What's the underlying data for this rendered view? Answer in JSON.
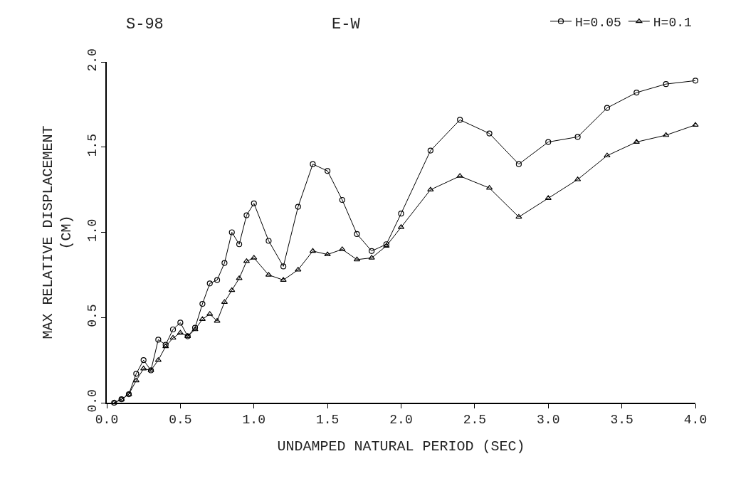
{
  "chart_data": {
    "type": "line",
    "title": "S-98",
    "subtitle": "E-W",
    "xlabel": "UNDAMPED NATURAL PERIOD (SEC)",
    "ylabel": "MAX RELATIVE DISPLACEMENT\n(CM)",
    "x": [
      0.05,
      0.1,
      0.15,
      0.2,
      0.25,
      0.3,
      0.35,
      0.4,
      0.45,
      0.5,
      0.55,
      0.6,
      0.65,
      0.7,
      0.75,
      0.8,
      0.85,
      0.9,
      0.95,
      1.0,
      1.1,
      1.2,
      1.3,
      1.4,
      1.5,
      1.6,
      1.7,
      1.8,
      1.9,
      2.0,
      2.2,
      2.4,
      2.6,
      2.8,
      3.0,
      3.2,
      3.4,
      3.6,
      3.8,
      4.0
    ],
    "series": [
      {
        "name": "H=0.05",
        "color": "#000000",
        "marker": "circle",
        "values": [
          0.0,
          0.02,
          0.05,
          0.17,
          0.25,
          0.19,
          0.37,
          0.34,
          0.43,
          0.47,
          0.39,
          0.44,
          0.58,
          0.7,
          0.72,
          0.82,
          1.0,
          0.93,
          1.1,
          1.17,
          0.95,
          0.8,
          1.15,
          1.4,
          1.36,
          1.19,
          0.99,
          0.89,
          0.93,
          1.11,
          1.48,
          1.66,
          1.58,
          1.4,
          1.53,
          1.56,
          1.73,
          1.82,
          1.87,
          1.89
        ]
      },
      {
        "name": "H=0.1",
        "color": "#000000",
        "marker": "triangle",
        "values": [
          0.0,
          0.02,
          0.05,
          0.13,
          0.2,
          0.19,
          0.25,
          0.33,
          0.38,
          0.41,
          0.39,
          0.43,
          0.49,
          0.52,
          0.48,
          0.59,
          0.66,
          0.73,
          0.83,
          0.85,
          0.75,
          0.72,
          0.78,
          0.89,
          0.87,
          0.9,
          0.84,
          0.85,
          0.92,
          1.03,
          1.25,
          1.33,
          1.26,
          1.09,
          1.2,
          1.31,
          1.45,
          1.53,
          1.57,
          1.63
        ]
      }
    ],
    "xlim": [
      0,
      4.0
    ],
    "xticks": [
      {
        "value": 0,
        "label": "0.0"
      },
      0.5,
      {
        "value": 1,
        "label": "1.0"
      },
      1.5,
      {
        "value": 2,
        "label": "2.0"
      },
      2.5,
      {
        "value": 3,
        "label": "3.0"
      },
      3.5,
      {
        "value": 4,
        "label": "4.0"
      }
    ],
    "ylim": [
      0,
      2.0
    ],
    "yticks": [
      {
        "value": 0,
        "label": "0.0"
      },
      0.5,
      {
        "value": 1,
        "label": "1.0"
      },
      1.5,
      {
        "value": 2,
        "label": "2.0"
      }
    ],
    "legend": "top right",
    "line_style": "solid"
  }
}
